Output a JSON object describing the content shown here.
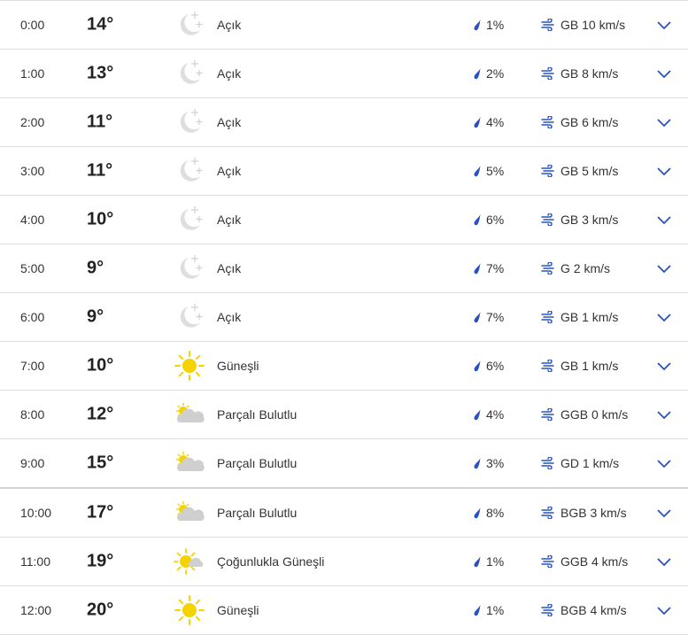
{
  "colors": {
    "accent": "#2a52be",
    "sun": "#f5d300",
    "cloud": "#cfcfcf",
    "moon": "#dedede"
  },
  "rows": [
    {
      "time": "0:00",
      "temp": "14°",
      "icon": "moon-icon",
      "condition": "Açık",
      "precip": "1%",
      "wind": "GB 10 km/s"
    },
    {
      "time": "1:00",
      "temp": "13°",
      "icon": "moon-icon",
      "condition": "Açık",
      "precip": "2%",
      "wind": "GB 8 km/s"
    },
    {
      "time": "2:00",
      "temp": "11°",
      "icon": "moon-icon",
      "condition": "Açık",
      "precip": "4%",
      "wind": "GB 6 km/s"
    },
    {
      "time": "3:00",
      "temp": "11°",
      "icon": "moon-icon",
      "condition": "Açık",
      "precip": "5%",
      "wind": "GB 5 km/s"
    },
    {
      "time": "4:00",
      "temp": "10°",
      "icon": "moon-icon",
      "condition": "Açık",
      "precip": "6%",
      "wind": "GB 3 km/s"
    },
    {
      "time": "5:00",
      "temp": "9°",
      "icon": "moon-icon",
      "condition": "Açık",
      "precip": "7%",
      "wind": "G 2 km/s"
    },
    {
      "time": "6:00",
      "temp": "9°",
      "icon": "moon-icon",
      "condition": "Açık",
      "precip": "7%",
      "wind": "GB 1 km/s"
    },
    {
      "time": "7:00",
      "temp": "10°",
      "icon": "sun-icon",
      "condition": "Güneşli",
      "precip": "6%",
      "wind": "GB 1 km/s"
    },
    {
      "time": "8:00",
      "temp": "12°",
      "icon": "partly-cloudy-icon",
      "condition": "Parçalı Bulutlu",
      "precip": "4%",
      "wind": "GGB 0 km/s"
    },
    {
      "time": "9:00",
      "temp": "15°",
      "icon": "partly-cloudy-icon",
      "condition": "Parçalı Bulutlu",
      "precip": "3%",
      "wind": "GD 1 km/s"
    },
    {
      "time": "10:00",
      "temp": "17°",
      "icon": "partly-cloudy-icon",
      "condition": "Parçalı Bulutlu",
      "precip": "8%",
      "wind": "BGB 3 km/s"
    },
    {
      "time": "11:00",
      "temp": "19°",
      "icon": "mostly-sunny-icon",
      "condition": "Çoğunlukla Güneşli",
      "precip": "1%",
      "wind": "GGB 4 km/s"
    },
    {
      "time": "12:00",
      "temp": "20°",
      "icon": "sun-icon",
      "condition": "Güneşli",
      "precip": "1%",
      "wind": "BGB 4 km/s"
    }
  ]
}
